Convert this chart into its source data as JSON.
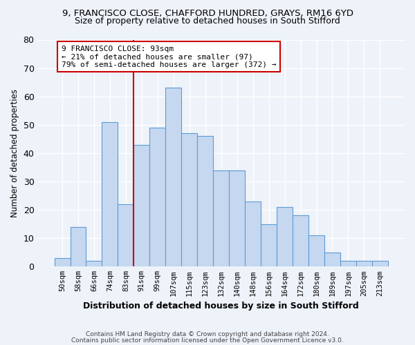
{
  "title_line1": "9, FRANCISCO CLOSE, CHAFFORD HUNDRED, GRAYS, RM16 6YD",
  "title_line2": "Size of property relative to detached houses in South Stifford",
  "xlabel": "Distribution of detached houses by size in South Stifford",
  "ylabel": "Number of detached properties",
  "bar_labels": [
    "50sqm",
    "58sqm",
    "66sqm",
    "74sqm",
    "83sqm",
    "91sqm",
    "99sqm",
    "107sqm",
    "115sqm",
    "123sqm",
    "132sqm",
    "140sqm",
    "148sqm",
    "156sqm",
    "164sqm",
    "172sqm",
    "180sqm",
    "189sqm",
    "197sqm",
    "205sqm",
    "213sqm"
  ],
  "bar_heights": [
    3,
    14,
    2,
    51,
    22,
    43,
    49,
    63,
    47,
    46,
    34,
    34,
    23,
    15,
    21,
    18,
    11,
    5,
    2,
    2,
    2
  ],
  "bar_color": "#c5d8f0",
  "bar_edge_color": "#5b9bd5",
  "highlight_bar_index": 5,
  "vline_color": "#cc0000",
  "annotation_text": "9 FRANCISCO CLOSE: 93sqm\n← 21% of detached houses are smaller (97)\n79% of semi-detached houses are larger (372) →",
  "annotation_box_color": "#ffffff",
  "annotation_box_edge": "#cc0000",
  "ylim": [
    0,
    80
  ],
  "yticks": [
    0,
    10,
    20,
    30,
    40,
    50,
    60,
    70,
    80
  ],
  "footer_line1": "Contains HM Land Registry data © Crown copyright and database right 2024.",
  "footer_line2": "Contains public sector information licensed under the Open Government Licence v3.0.",
  "background_color": "#eef2f9",
  "grid_color": "#ffffff"
}
